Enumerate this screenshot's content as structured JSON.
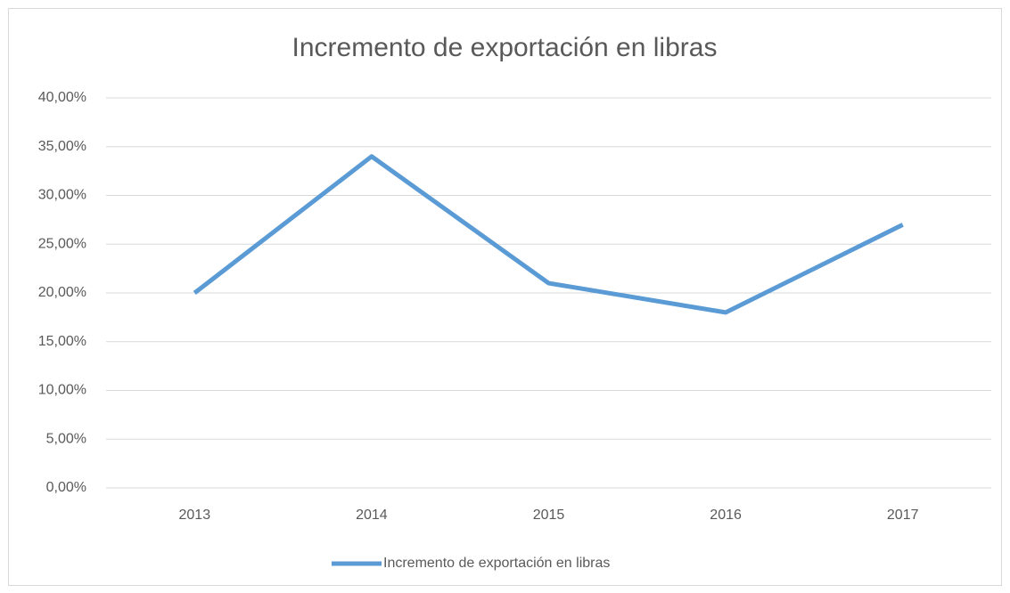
{
  "chart_data": {
    "type": "line",
    "title": "Incremento de exportación en libras",
    "categories": [
      "2013",
      "2014",
      "2015",
      "2016",
      "2017"
    ],
    "series": [
      {
        "name": "Incremento de exportación en libras",
        "color": "#5b9bd5",
        "values": [
          20,
          34,
          21,
          18,
          27
        ]
      }
    ],
    "ylim": [
      0,
      40
    ],
    "yticks": [
      {
        "value": 0,
        "label": "0,00%"
      },
      {
        "value": 5,
        "label": "5,00%"
      },
      {
        "value": 10,
        "label": "10,00%"
      },
      {
        "value": 15,
        "label": "15,00%"
      },
      {
        "value": 20,
        "label": "20,00%"
      },
      {
        "value": 25,
        "label": "25,00%"
      },
      {
        "value": 30,
        "label": "30,00%"
      },
      {
        "value": 35,
        "label": "35,00%"
      },
      {
        "value": 40,
        "label": "40,00%"
      }
    ],
    "grid": true,
    "legend": "bottom"
  }
}
